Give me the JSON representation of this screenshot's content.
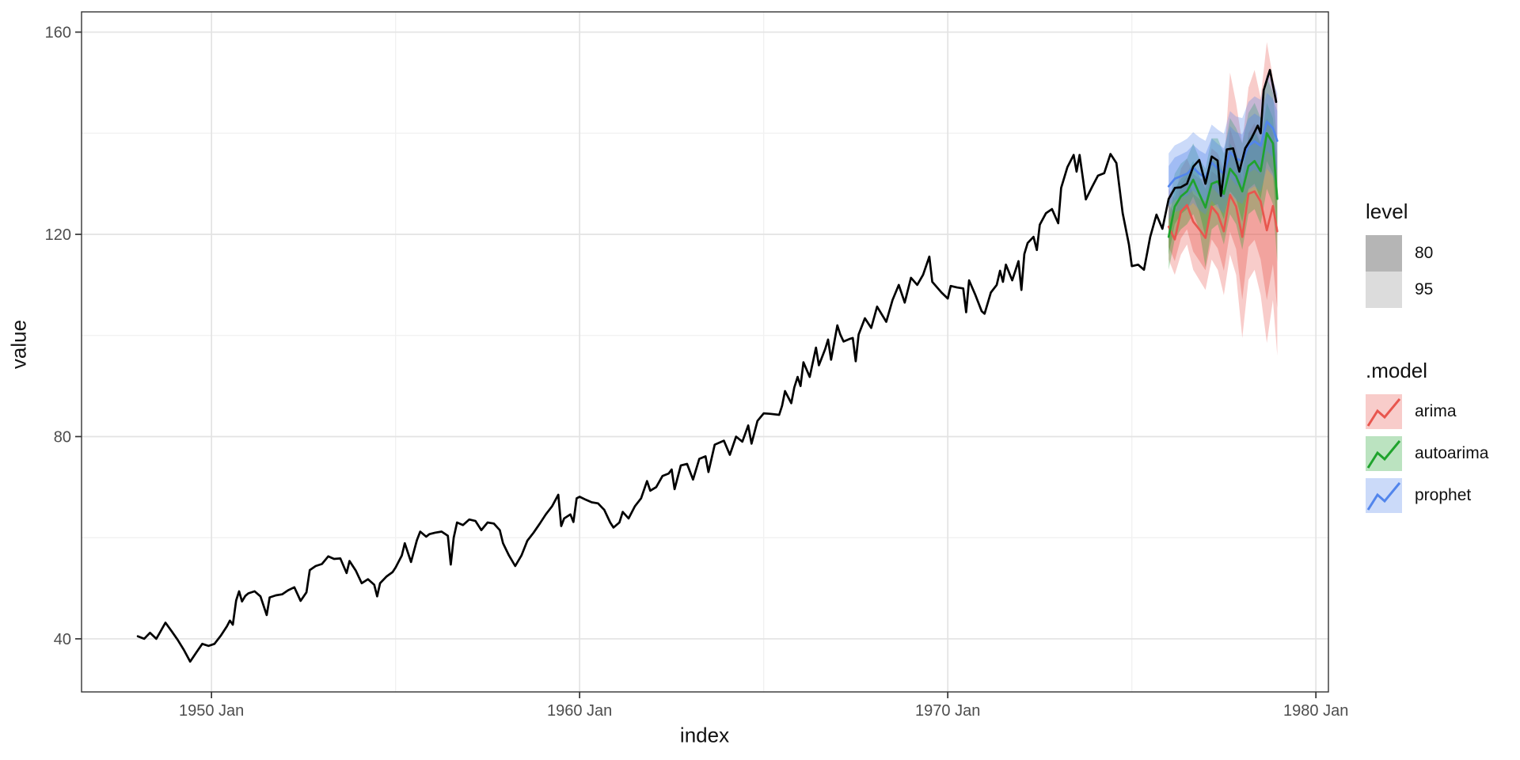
{
  "axes": {
    "x_title": "index",
    "y_title": "value"
  },
  "legend": {
    "level_title": "level",
    "model_title": ".model",
    "level_items": [
      {
        "label": "80",
        "swatch": "#b5b5b5"
      },
      {
        "label": "95",
        "swatch": "#dcdcdc"
      }
    ],
    "model_items": [
      {
        "label": "arima",
        "color": "#E8564E"
      },
      {
        "label": "autoarima",
        "color": "#1FA32D"
      },
      {
        "label": "prophet",
        "color": "#5285EC"
      }
    ]
  },
  "chart_data": {
    "type": "line",
    "title": "",
    "xlabel": "index",
    "ylabel": "value",
    "xlim": [
      1946.47,
      1980.34
    ],
    "ylim": [
      29.5,
      164.0
    ],
    "grid": true,
    "legend_position": "right",
    "x_ticks": [
      {
        "pos": 1950,
        "label": "1950 Jan"
      },
      {
        "pos": 1960,
        "label": "1960 Jan"
      },
      {
        "pos": 1970,
        "label": "1970 Jan"
      },
      {
        "pos": 1980,
        "label": "1980 Jan"
      }
    ],
    "x_minor": [
      1955,
      1965,
      1975
    ],
    "y_ticks": [
      {
        "pos": 40,
        "label": "40"
      },
      {
        "pos": 80,
        "label": "80"
      },
      {
        "pos": 120,
        "label": "120"
      },
      {
        "pos": 160,
        "label": "160"
      }
    ],
    "y_minor": [
      60,
      100,
      140
    ],
    "levels": [
      {
        "label": "80",
        "alpha": 0.35
      },
      {
        "label": "95",
        "alpha": 0.3
      }
    ],
    "actual": {
      "name": "value",
      "color": "#000000",
      "points": [
        [
          1948.0,
          40.5
        ],
        [
          1948.17,
          40.0
        ],
        [
          1948.33,
          41.2
        ],
        [
          1948.5,
          40.0
        ],
        [
          1948.58,
          41.0
        ],
        [
          1948.75,
          43.2
        ],
        [
          1948.92,
          41.5
        ],
        [
          1949.08,
          39.8
        ],
        [
          1949.25,
          37.8
        ],
        [
          1949.42,
          35.5
        ],
        [
          1949.58,
          37.2
        ],
        [
          1949.75,
          39.0
        ],
        [
          1949.92,
          38.6
        ],
        [
          1950.08,
          39.0
        ],
        [
          1950.25,
          40.6
        ],
        [
          1950.42,
          42.5
        ],
        [
          1950.5,
          43.6
        ],
        [
          1950.58,
          42.8
        ],
        [
          1950.67,
          47.6
        ],
        [
          1950.75,
          49.4
        ],
        [
          1950.83,
          47.4
        ],
        [
          1950.92,
          48.5
        ],
        [
          1951.0,
          49.0
        ],
        [
          1951.17,
          49.4
        ],
        [
          1951.33,
          48.4
        ],
        [
          1951.5,
          44.7
        ],
        [
          1951.58,
          48.2
        ],
        [
          1951.75,
          48.6
        ],
        [
          1951.92,
          48.8
        ],
        [
          1952.08,
          49.6
        ],
        [
          1952.25,
          50.2
        ],
        [
          1952.42,
          47.5
        ],
        [
          1952.58,
          49.2
        ],
        [
          1952.67,
          53.6
        ],
        [
          1952.83,
          54.4
        ],
        [
          1953.0,
          54.8
        ],
        [
          1953.17,
          56.3
        ],
        [
          1953.33,
          55.8
        ],
        [
          1953.5,
          55.9
        ],
        [
          1953.67,
          53.0
        ],
        [
          1953.75,
          55.4
        ],
        [
          1953.92,
          53.5
        ],
        [
          1954.08,
          51.0
        ],
        [
          1954.25,
          51.8
        ],
        [
          1954.42,
          50.7
        ],
        [
          1954.5,
          48.4
        ],
        [
          1954.58,
          51.0
        ],
        [
          1954.75,
          52.3
        ],
        [
          1954.92,
          53.2
        ],
        [
          1955.0,
          54.1
        ],
        [
          1955.17,
          56.5
        ],
        [
          1955.25,
          58.9
        ],
        [
          1955.42,
          55.2
        ],
        [
          1955.58,
          59.5
        ],
        [
          1955.67,
          61.2
        ],
        [
          1955.83,
          60.2
        ],
        [
          1955.92,
          60.7
        ],
        [
          1956.08,
          61.0
        ],
        [
          1956.25,
          61.2
        ],
        [
          1956.42,
          60.4
        ],
        [
          1956.5,
          54.7
        ],
        [
          1956.58,
          60.0
        ],
        [
          1956.67,
          63.0
        ],
        [
          1956.83,
          62.5
        ],
        [
          1957.0,
          63.6
        ],
        [
          1957.17,
          63.3
        ],
        [
          1957.33,
          61.5
        ],
        [
          1957.5,
          63.0
        ],
        [
          1957.67,
          62.8
        ],
        [
          1957.83,
          61.5
        ],
        [
          1957.92,
          58.9
        ],
        [
          1958.08,
          56.5
        ],
        [
          1958.25,
          54.4
        ],
        [
          1958.42,
          56.5
        ],
        [
          1958.58,
          59.4
        ],
        [
          1958.75,
          61.0
        ],
        [
          1958.92,
          62.8
        ],
        [
          1959.08,
          64.6
        ],
        [
          1959.25,
          66.2
        ],
        [
          1959.42,
          68.5
        ],
        [
          1959.5,
          62.3
        ],
        [
          1959.58,
          63.8
        ],
        [
          1959.75,
          64.6
        ],
        [
          1959.83,
          63.1
        ],
        [
          1959.92,
          67.8
        ],
        [
          1960.0,
          68.1
        ],
        [
          1960.17,
          67.5
        ],
        [
          1960.33,
          67.0
        ],
        [
          1960.5,
          66.8
        ],
        [
          1960.67,
          65.5
        ],
        [
          1960.83,
          63.0
        ],
        [
          1960.92,
          62.0
        ],
        [
          1961.08,
          63.0
        ],
        [
          1961.17,
          65.1
        ],
        [
          1961.33,
          63.8
        ],
        [
          1961.5,
          66.2
        ],
        [
          1961.67,
          67.8
        ],
        [
          1961.83,
          71.2
        ],
        [
          1961.92,
          69.3
        ],
        [
          1962.08,
          70.0
        ],
        [
          1962.25,
          72.2
        ],
        [
          1962.42,
          72.7
        ],
        [
          1962.5,
          73.5
        ],
        [
          1962.58,
          69.6
        ],
        [
          1962.75,
          74.3
        ],
        [
          1962.92,
          74.6
        ],
        [
          1963.08,
          71.5
        ],
        [
          1963.25,
          75.6
        ],
        [
          1963.42,
          76.1
        ],
        [
          1963.5,
          73.0
        ],
        [
          1963.67,
          78.4
        ],
        [
          1963.92,
          79.2
        ],
        [
          1964.08,
          76.4
        ],
        [
          1964.25,
          80.0
        ],
        [
          1964.42,
          79.0
        ],
        [
          1964.58,
          82.2
        ],
        [
          1964.67,
          78.6
        ],
        [
          1964.83,
          83.1
        ],
        [
          1965.0,
          84.6
        ],
        [
          1965.17,
          84.5
        ],
        [
          1965.42,
          84.3
        ],
        [
          1965.5,
          86.1
        ],
        [
          1965.58,
          89.0
        ],
        [
          1965.75,
          86.6
        ],
        [
          1965.83,
          89.7
        ],
        [
          1965.92,
          91.8
        ],
        [
          1966.0,
          90.0
        ],
        [
          1966.08,
          94.7
        ],
        [
          1966.25,
          91.8
        ],
        [
          1966.42,
          97.6
        ],
        [
          1966.5,
          94.1
        ],
        [
          1966.67,
          97.3
        ],
        [
          1966.75,
          99.2
        ],
        [
          1966.83,
          95.2
        ],
        [
          1967.0,
          102.0
        ],
        [
          1967.08,
          100.2
        ],
        [
          1967.17,
          98.8
        ],
        [
          1967.33,
          99.3
        ],
        [
          1967.42,
          99.5
        ],
        [
          1967.5,
          94.9
        ],
        [
          1967.58,
          100.2
        ],
        [
          1967.75,
          103.4
        ],
        [
          1967.92,
          101.5
        ],
        [
          1968.08,
          105.7
        ],
        [
          1968.33,
          102.7
        ],
        [
          1968.5,
          107.0
        ],
        [
          1968.67,
          110.0
        ],
        [
          1968.83,
          106.5
        ],
        [
          1969.0,
          111.4
        ],
        [
          1969.17,
          110.0
        ],
        [
          1969.33,
          112.0
        ],
        [
          1969.5,
          115.6
        ],
        [
          1969.58,
          110.6
        ],
        [
          1969.83,
          108.5
        ],
        [
          1970.0,
          107.3
        ],
        [
          1970.08,
          109.8
        ],
        [
          1970.25,
          109.5
        ],
        [
          1970.42,
          109.3
        ],
        [
          1970.5,
          104.6
        ],
        [
          1970.58,
          110.9
        ],
        [
          1970.75,
          108.0
        ],
        [
          1970.92,
          104.8
        ],
        [
          1971.0,
          104.3
        ],
        [
          1971.17,
          108.5
        ],
        [
          1971.33,
          110.0
        ],
        [
          1971.42,
          112.8
        ],
        [
          1971.5,
          110.6
        ],
        [
          1971.58,
          114.0
        ],
        [
          1971.75,
          110.9
        ],
        [
          1971.92,
          114.7
        ],
        [
          1972.0,
          109.0
        ],
        [
          1972.08,
          116.1
        ],
        [
          1972.17,
          118.3
        ],
        [
          1972.33,
          119.5
        ],
        [
          1972.42,
          116.9
        ],
        [
          1972.5,
          121.9
        ],
        [
          1972.67,
          124.2
        ],
        [
          1972.83,
          125.0
        ],
        [
          1973.0,
          122.2
        ],
        [
          1973.08,
          129.2
        ],
        [
          1973.25,
          133.3
        ],
        [
          1973.42,
          135.7
        ],
        [
          1973.5,
          132.4
        ],
        [
          1973.58,
          135.7
        ],
        [
          1973.75,
          126.9
        ],
        [
          1973.92,
          129.4
        ],
        [
          1974.08,
          131.6
        ],
        [
          1974.25,
          132.1
        ],
        [
          1974.42,
          135.9
        ],
        [
          1974.58,
          134.1
        ],
        [
          1974.75,
          124.2
        ],
        [
          1974.92,
          118.0
        ],
        [
          1975.0,
          113.7
        ],
        [
          1975.17,
          114.0
        ],
        [
          1975.33,
          113.0
        ],
        [
          1975.5,
          119.5
        ],
        [
          1975.67,
          123.9
        ],
        [
          1975.83,
          121.1
        ],
        [
          1976.0,
          127.0
        ],
        [
          1976.17,
          129.2
        ],
        [
          1976.33,
          129.3
        ],
        [
          1976.5,
          130.0
        ],
        [
          1976.67,
          133.4
        ],
        [
          1976.83,
          134.7
        ],
        [
          1977.0,
          130.0
        ],
        [
          1977.17,
          135.4
        ],
        [
          1977.33,
          134.6
        ],
        [
          1977.42,
          127.6
        ],
        [
          1977.58,
          136.8
        ],
        [
          1977.75,
          137.0
        ],
        [
          1977.92,
          132.4
        ],
        [
          1978.08,
          137.0
        ],
        [
          1978.25,
          139.0
        ],
        [
          1978.42,
          141.5
        ],
        [
          1978.5,
          140.0
        ],
        [
          1978.58,
          148.5
        ],
        [
          1978.75,
          152.5
        ],
        [
          1978.92,
          146.2
        ]
      ]
    },
    "forecast_x": [
      1976.0,
      1976.167,
      1976.333,
      1976.5,
      1976.667,
      1976.833,
      1977.0,
      1977.167,
      1977.333,
      1977.5,
      1977.667,
      1977.833,
      1978.0,
      1978.167,
      1978.333,
      1978.5,
      1978.667,
      1978.833,
      1978.95
    ],
    "forecasts": [
      {
        "name": "arima",
        "color": "#E8564E",
        "mean": [
          121.5,
          119.0,
          124.5,
          125.8,
          122.5,
          121.0,
          119.3,
          125.5,
          124.0,
          120.6,
          127.8,
          125.5,
          119.5,
          128.0,
          128.5,
          126.5,
          120.8,
          125.6,
          120.6
        ],
        "hi80": [
          126.0,
          124.0,
          130.0,
          131.5,
          128.0,
          127.0,
          126.5,
          132.5,
          131.5,
          128.0,
          141.0,
          137.0,
          130.5,
          140.0,
          142.0,
          138.0,
          143.0,
          140.0,
          136.0
        ],
        "lo80": [
          117.5,
          114.7,
          119.2,
          121.0,
          116.6,
          114.8,
          112.9,
          119.0,
          117.2,
          112.8,
          120.5,
          117.1,
          107.1,
          117.5,
          118.9,
          115.0,
          107.0,
          114.1,
          105.4
        ],
        "hi95": [
          129.0,
          127.0,
          133.0,
          135.0,
          132.0,
          131.0,
          131.0,
          137.0,
          136.0,
          133.0,
          152.0,
          146.0,
          138.0,
          149.0,
          152.5,
          147.0,
          158.0,
          151.0,
          147.0
        ],
        "lo95": [
          115.0,
          112.0,
          116.0,
          118.0,
          113.0,
          111.0,
          109.0,
          115.0,
          113.0,
          108.0,
          116.0,
          112.0,
          99.5,
          111.0,
          113.0,
          108.0,
          98.5,
          107.0,
          96.0
        ]
      },
      {
        "name": "autoarima",
        "color": "#1FA32D",
        "mean": [
          119.5,
          125.5,
          127.5,
          128.5,
          130.8,
          128.0,
          125.3,
          130.0,
          130.5,
          128.0,
          133.0,
          131.5,
          128.5,
          133.5,
          134.5,
          132.5,
          140.0,
          138.0,
          127.0
        ],
        "hi80": [
          123.0,
          129.0,
          131.0,
          132.0,
          134.5,
          131.5,
          129.0,
          134.5,
          135.0,
          132.0,
          138.0,
          136.0,
          133.0,
          139.0,
          140.5,
          138.0,
          146.0,
          143.0,
          133.0
        ],
        "lo80": [
          116.0,
          122.0,
          124.0,
          125.0,
          127.5,
          124.5,
          119.5,
          125.5,
          126.0,
          123.0,
          128.5,
          127.0,
          122.5,
          129.0,
          130.0,
          127.0,
          134.5,
          132.0,
          120.5
        ],
        "hi95": [
          126.0,
          132.0,
          134.0,
          135.0,
          138.0,
          135.0,
          133.0,
          139.0,
          139.0,
          136.0,
          143.0,
          141.0,
          138.0,
          144.0,
          146.0,
          143.0,
          151.0,
          148.0,
          138.0
        ],
        "lo95": [
          113.0,
          119.0,
          121.0,
          122.0,
          124.0,
          121.0,
          113.5,
          121.0,
          122.0,
          118.0,
          124.0,
          122.0,
          117.0,
          124.0,
          125.0,
          122.0,
          129.0,
          126.0,
          114.5
        ]
      },
      {
        "name": "prophet",
        "color": "#5285EC",
        "mean": [
          129.5,
          131.0,
          131.5,
          132.0,
          133.2,
          132.0,
          131.2,
          134.2,
          133.0,
          132.0,
          136.3,
          135.0,
          134.5,
          137.5,
          138.4,
          137.5,
          142.3,
          141.0,
          138.5
        ],
        "hi80": [
          133.5,
          135.2,
          135.8,
          136.4,
          137.7,
          136.6,
          135.9,
          139.0,
          137.9,
          137.0,
          141.4,
          140.2,
          139.8,
          142.9,
          143.9,
          143.1,
          148.0,
          146.8,
          144.4
        ],
        "lo80": [
          125.5,
          126.8,
          127.2,
          127.6,
          128.7,
          127.4,
          126.5,
          129.4,
          128.1,
          127.0,
          131.2,
          129.8,
          129.2,
          132.1,
          132.9,
          131.9,
          136.6,
          135.2,
          132.6
        ],
        "hi95": [
          136.0,
          137.6,
          138.2,
          138.9,
          140.2,
          139.2,
          138.5,
          141.7,
          140.7,
          139.9,
          144.4,
          143.3,
          143.0,
          146.2,
          147.3,
          146.6,
          151.6,
          150.5,
          148.0
        ],
        "lo95": [
          123.0,
          124.4,
          124.8,
          125.1,
          126.2,
          124.8,
          123.9,
          126.7,
          125.3,
          124.1,
          128.2,
          126.7,
          126.0,
          128.8,
          129.5,
          128.4,
          133.0,
          131.5,
          129.0
        ]
      }
    ]
  }
}
